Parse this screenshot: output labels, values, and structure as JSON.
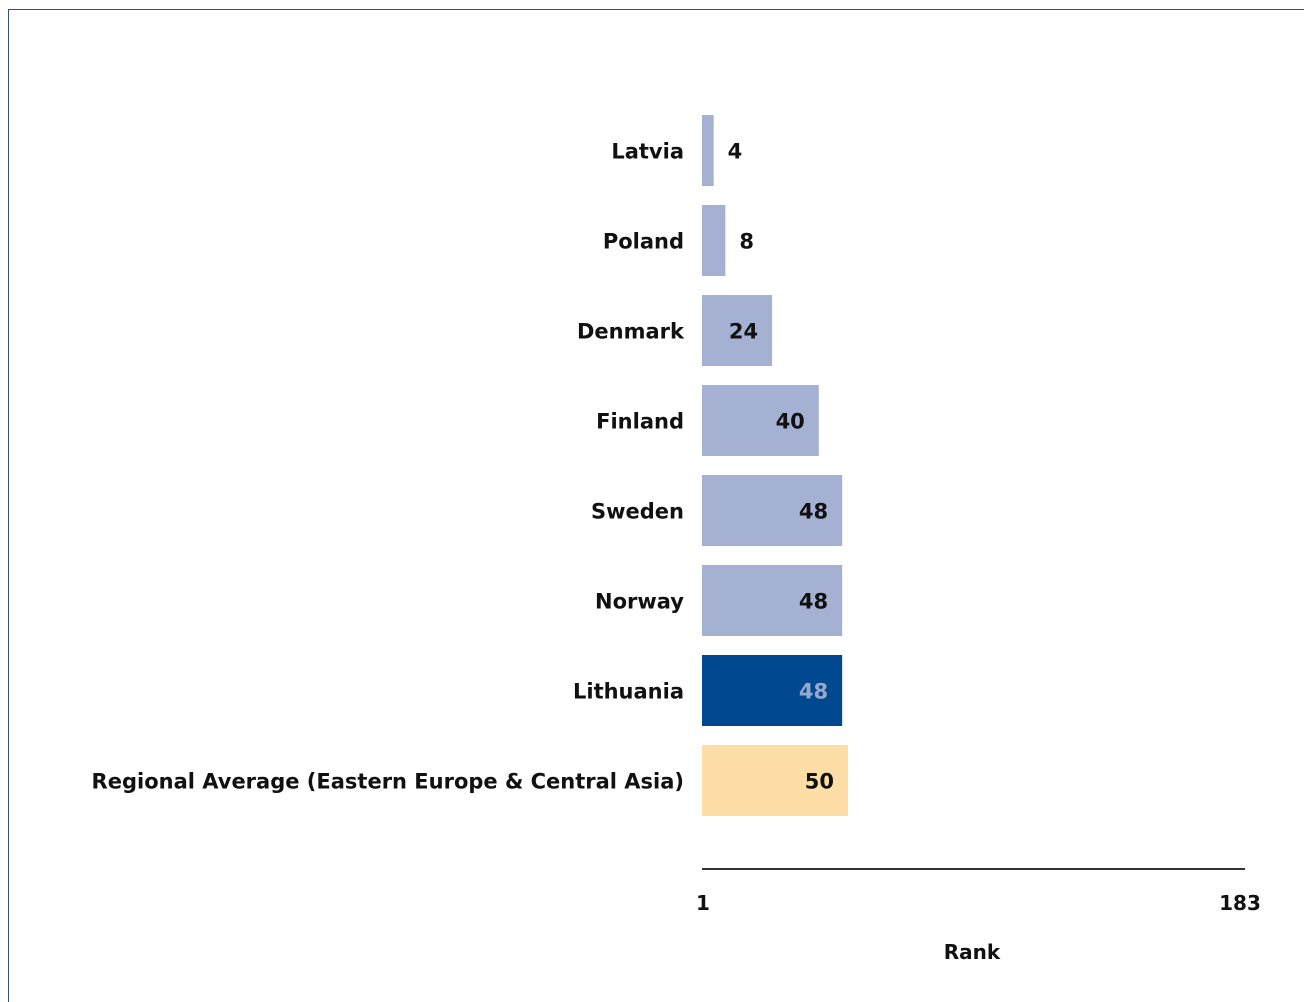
{
  "chart_data": {
    "type": "bar",
    "orientation": "horizontal",
    "title": "",
    "xlabel": "Rank",
    "ylabel": "",
    "xlim": [
      1,
      183
    ],
    "x_ticks": [
      "1",
      "183"
    ],
    "grid": false,
    "legend": "none",
    "categories": [
      "Latvia",
      "Poland",
      "Denmark",
      "Finland",
      "Sweden",
      "Norway",
      "Lithuania",
      "Regional Average (Eastern Europe & Central Asia)"
    ],
    "values": [
      4,
      8,
      24,
      40,
      48,
      48,
      48,
      50
    ],
    "colors": [
      "#a4b1d3",
      "#a4b1d3",
      "#a4b1d3",
      "#a4b1d3",
      "#a4b1d3",
      "#a4b1d3",
      "#004990",
      "#fddea6"
    ],
    "value_label_colors": [
      "#111111",
      "#111111",
      "#111111",
      "#111111",
      "#111111",
      "#111111",
      "#9aa8cc",
      "#111111"
    ]
  }
}
